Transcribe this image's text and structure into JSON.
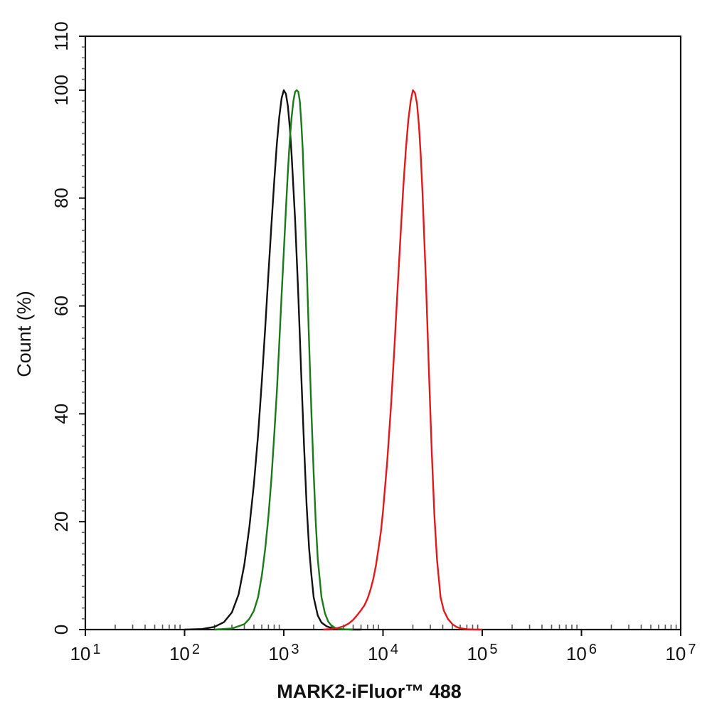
{
  "chart_data": {
    "type": "line",
    "xlabel": "MARK2-iFluor™ 488",
    "ylabel": "Count  (%)",
    "x_scale": "log",
    "xlim": [
      10,
      10000000
    ],
    "ylim": [
      0,
      110
    ],
    "x_ticks": [
      {
        "value": 10,
        "base": "10",
        "exp": "1"
      },
      {
        "value": 100,
        "base": "10",
        "exp": "2"
      },
      {
        "value": 1000,
        "base": "10",
        "exp": "3"
      },
      {
        "value": 10000,
        "base": "10",
        "exp": "4"
      },
      {
        "value": 100000,
        "base": "10",
        "exp": "5"
      },
      {
        "value": 1000000,
        "base": "10",
        "exp": "6"
      },
      {
        "value": 10000000,
        "base": "10",
        "exp": "7"
      }
    ],
    "y_ticks": [
      "0",
      "20",
      "40",
      "60",
      "80",
      "100",
      "110"
    ],
    "grid": false,
    "legend": "none",
    "series": [
      {
        "color": "#111111",
        "x": [
          100,
          150,
          200,
          250,
          300,
          350,
          400,
          450,
          500,
          550,
          600,
          650,
          700,
          750,
          800,
          850,
          900,
          950,
          1000,
          1050,
          1100,
          1150,
          1200,
          1300,
          1400,
          1500,
          1600,
          1700,
          1800,
          1900,
          2000,
          2200,
          2400,
          2700,
          3000,
          3500,
          4000,
          5000,
          6000
        ],
        "y": [
          0,
          0.1,
          0.5,
          1.4,
          3.2,
          6.5,
          12,
          19,
          27,
          36,
          46,
          56,
          66,
          75,
          83,
          90,
          95,
          98.5,
          100,
          99.3,
          97,
          93,
          88,
          76,
          62,
          47,
          34,
          23,
          15,
          10,
          6,
          2.6,
          1.3,
          0.6,
          0.3,
          0.1,
          0.05,
          0,
          0
        ]
      },
      {
        "color": "#1a7a1a",
        "x": [
          200,
          300,
          400,
          450,
          500,
          550,
          600,
          650,
          700,
          750,
          800,
          850,
          900,
          950,
          1000,
          1050,
          1100,
          1150,
          1200,
          1250,
          1300,
          1350,
          1400,
          1450,
          1500,
          1550,
          1600,
          1700,
          1800,
          1900,
          2000,
          2100,
          2200,
          2400,
          2600,
          2800,
          3000,
          3300,
          3600,
          4000,
          5000
        ],
        "y": [
          0,
          0.2,
          1,
          2,
          3.5,
          6,
          10,
          15,
          21,
          28,
          36,
          44,
          53,
          62,
          70,
          78,
          85,
          91,
          95,
          98,
          99.7,
          100,
          99.7,
          98,
          94,
          89,
          82,
          68,
          53,
          40,
          29,
          20,
          13,
          6,
          3,
          1.5,
          0.8,
          0.3,
          0.1,
          0.05,
          0
        ]
      },
      {
        "color": "#e01a1a",
        "x": [
          2500,
          3000,
          3500,
          4000,
          4500,
          5000,
          5500,
          6000,
          6500,
          7000,
          7500,
          8000,
          8500,
          9000,
          9500,
          10000,
          11000,
          12000,
          13000,
          14000,
          15000,
          16000,
          17000,
          18000,
          19000,
          20000,
          21000,
          22000,
          23000,
          24000,
          25000,
          27000,
          29000,
          31000,
          33000,
          35000,
          38000,
          41000,
          45000,
          50000,
          55000,
          60000,
          70000,
          80000,
          90000,
          100000
        ],
        "y": [
          0,
          0.1,
          0.3,
          0.6,
          1.1,
          1.8,
          2.7,
          3.6,
          4.5,
          5.8,
          7.5,
          9.5,
          12,
          15,
          18,
          22,
          31,
          41,
          52,
          63,
          73,
          82,
          89,
          94.5,
          98,
          100,
          99.5,
          97.5,
          93.5,
          88,
          81,
          65,
          48,
          33,
          21,
          13,
          6,
          3.5,
          2,
          1,
          0.5,
          0.25,
          0.08,
          0.03,
          0.01,
          0
        ]
      }
    ]
  }
}
